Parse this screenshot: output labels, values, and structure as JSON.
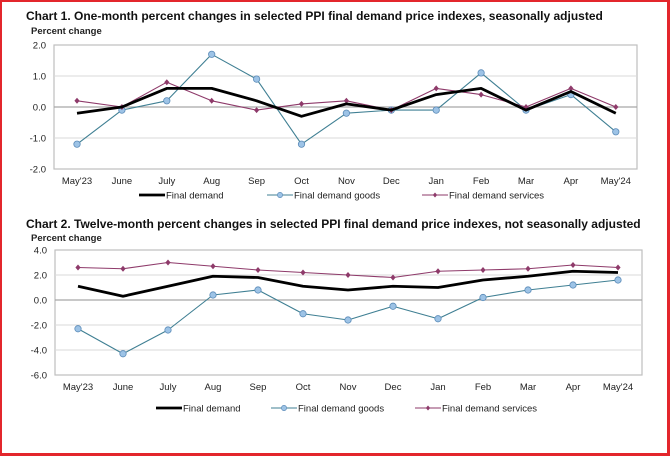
{
  "chart_data": [
    {
      "type": "line",
      "title": "Chart 1. One-month percent changes in selected PPI final demand price indexes, seasonally adjusted",
      "ylabel": "Percent change",
      "xlabel": "",
      "categories": [
        "May'23",
        "June",
        "July",
        "Aug",
        "Sep",
        "Oct",
        "Nov",
        "Dec",
        "Jan",
        "Feb",
        "Mar",
        "Apr",
        "May'24"
      ],
      "ylim": [
        -2.0,
        2.0
      ],
      "yticks": [
        "2.0",
        "1.0",
        "0.0",
        "-1.0",
        "-2.0"
      ],
      "ytick_values": [
        2.0,
        1.0,
        0.0,
        -1.0,
        -2.0
      ],
      "grid": true,
      "legend": "bottom",
      "series": [
        {
          "name": "Final demand",
          "color": "#000000",
          "marker": "none",
          "values": [
            -0.2,
            0.0,
            0.6,
            0.6,
            0.2,
            -0.3,
            0.1,
            -0.1,
            0.4,
            0.6,
            -0.1,
            0.5,
            -0.2
          ]
        },
        {
          "name": "Final demand goods",
          "color": "#3f7f93",
          "marker_color": "#9dc3e6",
          "marker": "circle",
          "values": [
            -1.2,
            -0.1,
            0.2,
            1.7,
            0.9,
            -1.2,
            -0.2,
            -0.1,
            -0.1,
            1.1,
            -0.1,
            0.4,
            -0.8
          ]
        },
        {
          "name": "Final demand services",
          "color": "#8e3a6a",
          "marker_color": "#8e3a6a",
          "marker": "diamond",
          "values": [
            0.2,
            0.0,
            0.8,
            0.2,
            -0.1,
            0.1,
            0.2,
            -0.1,
            0.6,
            0.4,
            0.0,
            0.6,
            0.0
          ]
        }
      ]
    },
    {
      "type": "line",
      "title": "Chart 2. Twelve-month percent changes in selected PPI final demand price indexes, not seasonally adjusted",
      "ylabel": "Percent change",
      "xlabel": "",
      "categories": [
        "May'23",
        "June",
        "July",
        "Aug",
        "Sep",
        "Oct",
        "Nov",
        "Dec",
        "Jan",
        "Feb",
        "Mar",
        "Apr",
        "May'24"
      ],
      "ylim": [
        -6.0,
        4.0
      ],
      "yticks": [
        "4.0",
        "2.0",
        "0.0",
        "-2.0",
        "-4.0",
        "-6.0"
      ],
      "ytick_values": [
        4.0,
        2.0,
        0.0,
        -2.0,
        -4.0,
        -6.0
      ],
      "grid": true,
      "legend": "bottom",
      "series": [
        {
          "name": "Final demand",
          "color": "#000000",
          "marker": "none",
          "values": [
            1.1,
            0.3,
            1.1,
            1.9,
            1.8,
            1.1,
            0.8,
            1.1,
            1.0,
            1.6,
            1.9,
            2.3,
            2.2
          ]
        },
        {
          "name": "Final demand goods",
          "color": "#3f7f93",
          "marker_color": "#9dc3e6",
          "marker": "circle",
          "values": [
            -2.3,
            -4.3,
            -2.4,
            0.4,
            0.8,
            -1.1,
            -1.6,
            -0.5,
            -1.5,
            0.2,
            0.8,
            1.2,
            1.6
          ]
        },
        {
          "name": "Final demand services",
          "color": "#8e3a6a",
          "marker_color": "#8e3a6a",
          "marker": "diamond",
          "values": [
            2.6,
            2.5,
            3.0,
            2.7,
            2.4,
            2.2,
            2.0,
            1.8,
            2.3,
            2.4,
            2.5,
            2.8,
            2.6
          ]
        }
      ]
    }
  ]
}
